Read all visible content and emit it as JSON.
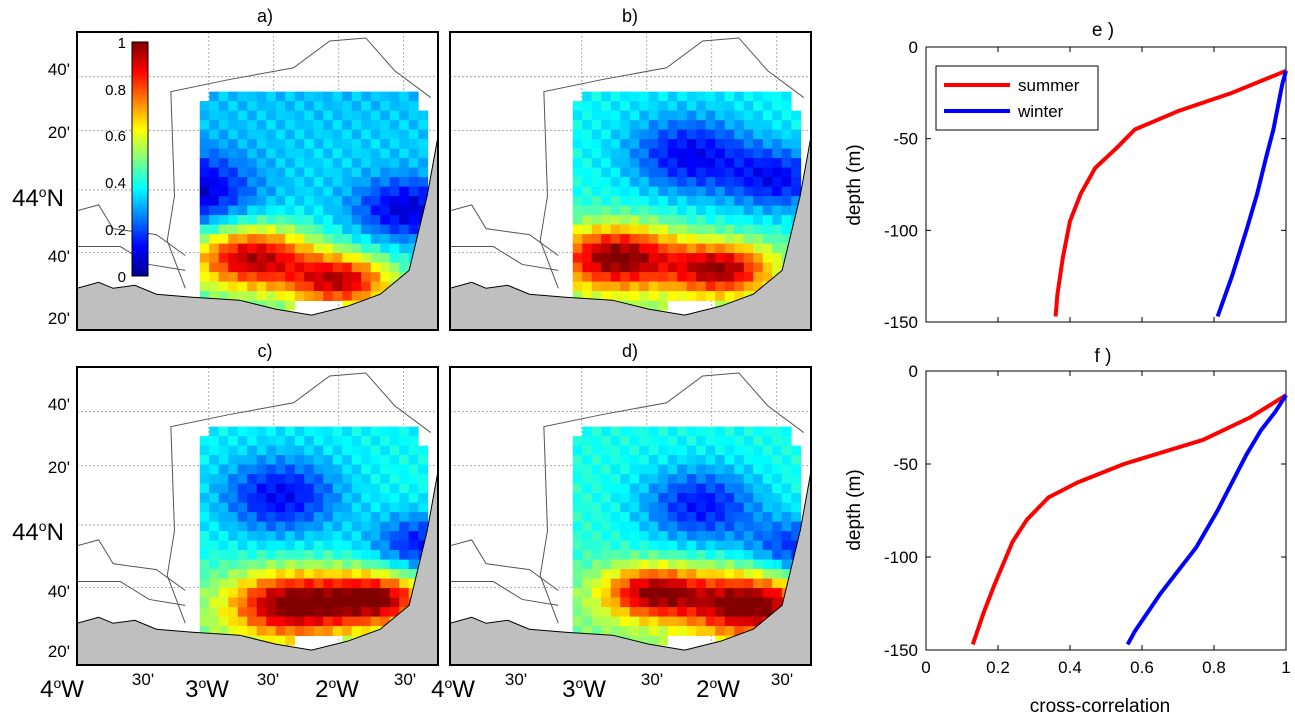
{
  "colors": {
    "summer": "#ff0000",
    "winter": "#0000ff",
    "land": "#bfbfbf",
    "frame": "#000000"
  },
  "maps": {
    "panels": [
      {
        "label": "a)",
        "variant": 0
      },
      {
        "label": "b)",
        "variant": 1
      },
      {
        "label": "c)",
        "variant": 2
      },
      {
        "label": "d)",
        "variant": 3
      }
    ],
    "lat_ticks": [
      "40'",
      "20'",
      "44",
      "40'",
      "20'"
    ],
    "lat_main_suffix": "N",
    "lon_ticks": [
      "4",
      "30'",
      "3",
      "30'",
      "2",
      "30'"
    ],
    "lon_ticks_right": [
      "4",
      "30'",
      "3",
      "30'",
      "2",
      "30'"
    ],
    "lon_main_suffix": "W",
    "degree_symbol": "o"
  },
  "colorbar": {
    "ticks": [
      "1",
      "0.8",
      "0.6",
      "0.4",
      "0.2",
      "0"
    ],
    "range": [
      0,
      1
    ]
  },
  "chart_data": [
    {
      "type": "line",
      "title": "e    )",
      "xlabel": "",
      "ylabel": "depth (m)",
      "xlim": [
        0,
        1
      ],
      "ylim": [
        -150,
        0
      ],
      "yticks": [
        0,
        -50,
        -100,
        -150
      ],
      "legend": "top-left",
      "series": [
        {
          "name": "summer",
          "x": [
            0.36,
            0.365,
            0.38,
            0.4,
            0.43,
            0.47,
            0.53,
            0.58,
            0.7,
            0.85,
            1.0
          ],
          "y": [
            -147,
            -135,
            -115,
            -95,
            -80,
            -66,
            -55,
            -45,
            -35,
            -25,
            -13
          ]
        },
        {
          "name": "winter",
          "x": [
            0.81,
            0.85,
            0.89,
            0.92,
            0.945,
            0.965,
            0.98,
            0.99,
            1.0
          ],
          "y": [
            -147,
            -125,
            -100,
            -80,
            -60,
            -45,
            -30,
            -20,
            -13
          ]
        }
      ]
    },
    {
      "type": "line",
      "title": "f    )",
      "xlabel": "cross-correlation",
      "ylabel": "depth (m)",
      "xlim": [
        0,
        1
      ],
      "ylim": [
        -150,
        0
      ],
      "xticks": [
        0,
        0.2,
        0.4,
        0.6,
        0.8,
        1
      ],
      "yticks": [
        0,
        -50,
        -100,
        -150
      ],
      "series": [
        {
          "name": "summer",
          "x": [
            0.13,
            0.16,
            0.19,
            0.24,
            0.28,
            0.34,
            0.42,
            0.55,
            0.77,
            0.9,
            1.0
          ],
          "y": [
            -147,
            -130,
            -115,
            -92,
            -80,
            -68,
            -60,
            -50,
            -37,
            -25,
            -13
          ]
        },
        {
          "name": "winter",
          "x": [
            0.56,
            0.58,
            0.65,
            0.75,
            0.81,
            0.85,
            0.89,
            0.93,
            0.97,
            1.0
          ],
          "y": [
            -147,
            -140,
            -120,
            -95,
            -75,
            -60,
            -45,
            -32,
            -22,
            -13
          ]
        }
      ]
    }
  ]
}
